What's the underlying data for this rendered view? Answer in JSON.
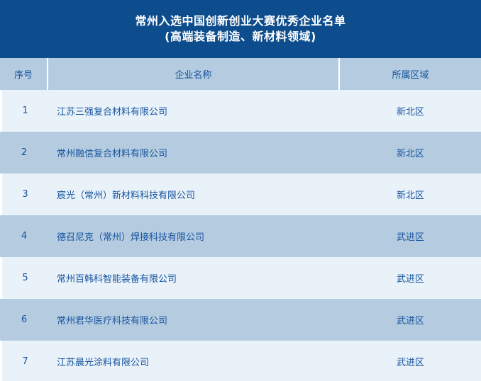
{
  "chart_data": {
    "type": "table",
    "title_line1": "常州入选中国创新创业大赛优秀企业名单",
    "title_line2": "(高端装备制造、新材料领域)",
    "columns": [
      "序号",
      "企业名称",
      "所属区域"
    ],
    "rows": [
      [
        "1",
        "江苏三强复合材料有限公司",
        "新北区"
      ],
      [
        "2",
        "常州融信复合材料有限公司",
        "新北区"
      ],
      [
        "3",
        "宸光（常州）新材料科技有限公司",
        "新北区"
      ],
      [
        "4",
        "德召尼克（常州）焊接科技有限公司",
        "武进区"
      ],
      [
        "5",
        "常州百韩科智能装备有限公司",
        "武进区"
      ],
      [
        "6",
        "常州君华医疗科技有限公司",
        "武进区"
      ],
      [
        "7",
        "江苏晨光涂料有限公司",
        "武进区"
      ]
    ],
    "layout": {
      "header_position": "top",
      "row_striping": "alternating-light-dark",
      "column_alignment": [
        "center",
        "left",
        "center"
      ]
    }
  },
  "colors": {
    "title_band": "#0e4d8d",
    "title_text": "#ffffff",
    "header_row_bg": "#b5cce0",
    "row_light_bg": "#e9f2f9",
    "row_dark_bg": "#b5cce0",
    "table_text": "#16539e",
    "divider": "#ffffff"
  }
}
